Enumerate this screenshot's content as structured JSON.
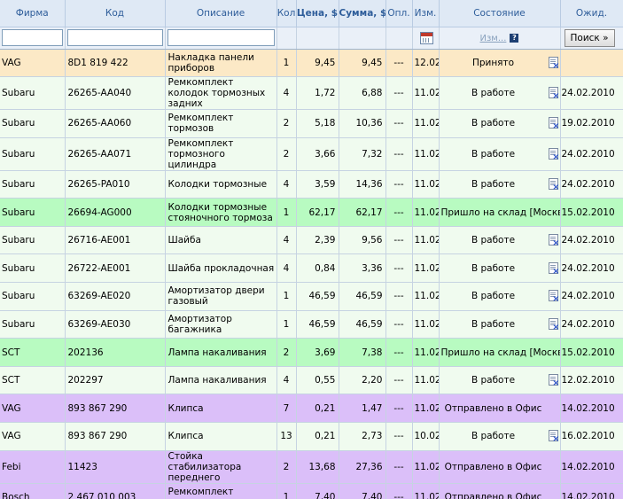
{
  "headers": {
    "firm": "Фирма",
    "code": "Код",
    "description": "Описание",
    "qty": "Кол",
    "price": "Цена, $",
    "sum": "Сумма, $",
    "paid": "Опл.",
    "changed": "Изм.",
    "state": "Состояние",
    "expected": "Ожид."
  },
  "filters": {
    "firm_value": "",
    "code_value": "",
    "description_value": "",
    "state_link": "Изм...",
    "help_label": "?",
    "search_label": "Поиск »"
  },
  "rows": [
    {
      "firm": "VAG",
      "code": "8D1 819 422",
      "desc": "Накладка панели приборов",
      "qty": "1",
      "price": "9,45",
      "sum": "9,45",
      "paid": "---",
      "changed": "12.02",
      "state": "Принято",
      "expected": "",
      "doc": true,
      "color": "orange"
    },
    {
      "firm": "Subaru",
      "code": "26265-AA040",
      "desc": "Ремкомплект колодок тормозных задних",
      "qty": "4",
      "price": "1,72",
      "sum": "6,88",
      "paid": "---",
      "changed": "11.02",
      "state": "В работе",
      "expected": "24.02.2010",
      "doc": true,
      "color": "light"
    },
    {
      "firm": "Subaru",
      "code": "26265-AA060",
      "desc": "Ремкомплект тормозов",
      "qty": "2",
      "price": "5,18",
      "sum": "10,36",
      "paid": "---",
      "changed": "11.02",
      "state": "В работе",
      "expected": "19.02.2010",
      "doc": true,
      "color": "light"
    },
    {
      "firm": "Subaru",
      "code": "26265-AA071",
      "desc": "Ремкомплект тормозного цилиндра",
      "qty": "2",
      "price": "3,66",
      "sum": "7,32",
      "paid": "---",
      "changed": "11.02",
      "state": "В работе",
      "expected": "24.02.2010",
      "doc": true,
      "color": "light"
    },
    {
      "firm": "Subaru",
      "code": "26265-PA010",
      "desc": "Колодки тормозные",
      "qty": "4",
      "price": "3,59",
      "sum": "14,36",
      "paid": "---",
      "changed": "11.02",
      "state": "В работе",
      "expected": "24.02.2010",
      "doc": true,
      "color": "light"
    },
    {
      "firm": "Subaru",
      "code": "26694-AG000",
      "desc": "Колодки тормозные стояночного тормоза",
      "qty": "1",
      "price": "62,17",
      "sum": "62,17",
      "paid": "---",
      "changed": "11.02",
      "state": "Пришло на склад [Москва]",
      "expected": "15.02.2010",
      "doc": false,
      "color": "green"
    },
    {
      "firm": "Subaru",
      "code": "26716-AE001",
      "desc": "Шайба",
      "qty": "4",
      "price": "2,39",
      "sum": "9,56",
      "paid": "---",
      "changed": "11.02",
      "state": "В работе",
      "expected": "24.02.2010",
      "doc": true,
      "color": "light"
    },
    {
      "firm": "Subaru",
      "code": "26722-AE001",
      "desc": "Шайба прокладочная",
      "qty": "4",
      "price": "0,84",
      "sum": "3,36",
      "paid": "---",
      "changed": "11.02",
      "state": "В работе",
      "expected": "24.02.2010",
      "doc": true,
      "color": "light"
    },
    {
      "firm": "Subaru",
      "code": "63269-AE020",
      "desc": "Амортизатор двери газовый",
      "qty": "1",
      "price": "46,59",
      "sum": "46,59",
      "paid": "---",
      "changed": "11.02",
      "state": "В работе",
      "expected": "24.02.2010",
      "doc": true,
      "color": "light"
    },
    {
      "firm": "Subaru",
      "code": "63269-AE030",
      "desc": "Амортизатор багажника",
      "qty": "1",
      "price": "46,59",
      "sum": "46,59",
      "paid": "---",
      "changed": "11.02",
      "state": "В работе",
      "expected": "24.02.2010",
      "doc": true,
      "color": "light"
    },
    {
      "firm": "SCT",
      "code": "202136",
      "desc": "Лампа накаливания",
      "qty": "2",
      "price": "3,69",
      "sum": "7,38",
      "paid": "---",
      "changed": "11.02",
      "state": "Пришло на склад [Москва]",
      "expected": "15.02.2010",
      "doc": false,
      "color": "green"
    },
    {
      "firm": "SCT",
      "code": "202297",
      "desc": "Лампа накаливания",
      "qty": "4",
      "price": "0,55",
      "sum": "2,20",
      "paid": "---",
      "changed": "11.02",
      "state": "В работе",
      "expected": "12.02.2010",
      "doc": true,
      "color": "light"
    },
    {
      "firm": "VAG",
      "code": "893 867 290",
      "desc": "Клипса",
      "qty": "7",
      "price": "0,21",
      "sum": "1,47",
      "paid": "---",
      "changed": "11.02",
      "state": "Отправлено в Офис",
      "expected": "14.02.2010",
      "doc": false,
      "color": "purple"
    },
    {
      "firm": "VAG",
      "code": "893 867 290",
      "desc": "Клипса",
      "qty": "13",
      "price": "0,21",
      "sum": "2,73",
      "paid": "---",
      "changed": "10.02",
      "state": "В работе",
      "expected": "16.02.2010",
      "doc": true,
      "color": "light"
    },
    {
      "firm": "Febi",
      "code": "11423",
      "desc": "Стойка стабилизатора переднего",
      "qty": "2",
      "price": "13,68",
      "sum": "27,36",
      "paid": "---",
      "changed": "11.02",
      "state": "Отправлено в Офис",
      "expected": "14.02.2010",
      "doc": false,
      "color": "purple"
    },
    {
      "firm": "Bosch",
      "code": "2 467 010 003",
      "desc": "Ремкомплект топливного насоса",
      "qty": "1",
      "price": "7,40",
      "sum": "7,40",
      "paid": "---",
      "changed": "11.02",
      "state": "Отправлено в Офис",
      "expected": "14.02.2010",
      "doc": false,
      "color": "purple"
    }
  ]
}
